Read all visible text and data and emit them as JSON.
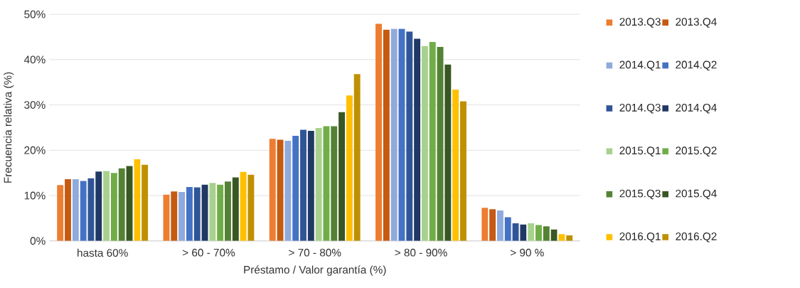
{
  "chart_data": {
    "type": "bar",
    "xlabel": "Préstamo / Valor garantía (%)",
    "ylabel": "Frecuencia relativa (%)",
    "categories": [
      "hasta 60%",
      "> 60 - 70%",
      "> 70 - 80%",
      "> 80 - 90%",
      "> 90 %"
    ],
    "series": [
      {
        "name": "2013.Q3",
        "color": "#ed7d31",
        "values": [
          12.3,
          10.2,
          22.5,
          47.9,
          7.3
        ]
      },
      {
        "name": "2013.Q4",
        "color": "#c55a11",
        "values": [
          13.6,
          10.9,
          22.3,
          46.6,
          7.0
        ]
      },
      {
        "name": "2014.Q1",
        "color": "#8faadc",
        "values": [
          13.6,
          10.8,
          22.1,
          46.8,
          6.7
        ]
      },
      {
        "name": "2014.Q2",
        "color": "#4472c4",
        "values": [
          13.2,
          11.9,
          23.2,
          46.8,
          5.2
        ]
      },
      {
        "name": "2014.Q3",
        "color": "#2f5597",
        "values": [
          13.8,
          11.8,
          24.5,
          46.2,
          3.9
        ]
      },
      {
        "name": "2014.Q4",
        "color": "#1f3864",
        "values": [
          15.3,
          12.4,
          24.3,
          44.6,
          3.6
        ]
      },
      {
        "name": "2015.Q1",
        "color": "#a9d18e",
        "values": [
          15.4,
          12.8,
          24.9,
          43.0,
          3.9
        ]
      },
      {
        "name": "2015.Q2",
        "color": "#70ad47",
        "values": [
          15.0,
          12.4,
          25.3,
          43.9,
          3.5
        ]
      },
      {
        "name": "2015.Q3",
        "color": "#548235",
        "values": [
          16.0,
          13.1,
          25.3,
          42.8,
          3.2
        ]
      },
      {
        "name": "2015.Q4",
        "color": "#385723",
        "values": [
          16.5,
          14.0,
          28.4,
          38.9,
          2.5
        ]
      },
      {
        "name": "2016.Q1",
        "color": "#ffc000",
        "values": [
          18.0,
          15.2,
          32.1,
          33.4,
          1.5
        ]
      },
      {
        "name": "2016.Q2",
        "color": "#bf9000",
        "values": [
          16.8,
          14.6,
          36.8,
          30.8,
          1.2
        ]
      }
    ],
    "ylim": [
      0,
      50
    ],
    "yticks": [
      {
        "value": 0,
        "label": "0%"
      },
      {
        "value": 10,
        "label": "10%"
      },
      {
        "value": 20,
        "label": "20%"
      },
      {
        "value": 30,
        "label": "30%"
      },
      {
        "value": 40,
        "label": "40%"
      },
      {
        "value": 50,
        "label": "50%"
      }
    ],
    "grid": "y",
    "legend": "right"
  }
}
